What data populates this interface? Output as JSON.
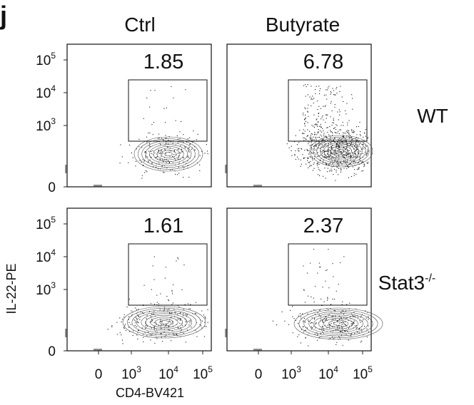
{
  "panel_label": "j",
  "x_axis_title": "CD4-BV421",
  "y_axis_title": "IL-22-PE",
  "y_ticks": [
    {
      "base": "10",
      "exp": "5"
    },
    {
      "base": "10",
      "exp": "4"
    },
    {
      "base": "10",
      "exp": "3"
    },
    {
      "base": "0",
      "exp": ""
    }
  ],
  "x_ticks": [
    {
      "base": "0",
      "exp": ""
    },
    {
      "base": "10",
      "exp": "3"
    },
    {
      "base": "10",
      "exp": "4"
    },
    {
      "base": "10",
      "exp": "5"
    }
  ],
  "chart_data": {
    "type": "scatter",
    "subtype": "flow cytometry contour/dot plot grid",
    "columns": [
      "Ctrl",
      "Butyrate"
    ],
    "rows": [
      {
        "base": "WT",
        "sup": ""
      },
      {
        "base": "Stat3",
        "sup": "-/-"
      }
    ],
    "x_axis": {
      "label": "CD4-BV421",
      "scale": "biexponential",
      "ticks": [
        "0",
        "10^3",
        "10^4",
        "10^5"
      ]
    },
    "y_axis": {
      "label": "IL-22-PE",
      "scale": "biexponential",
      "ticks": [
        "0",
        "10^3",
        "10^4",
        "10^5"
      ]
    },
    "gate_percentages": [
      [
        "1.85",
        "6.78"
      ],
      [
        "1.61",
        "2.37"
      ]
    ],
    "gate_region": "CD4+ IL-22+ (upper gate)"
  }
}
